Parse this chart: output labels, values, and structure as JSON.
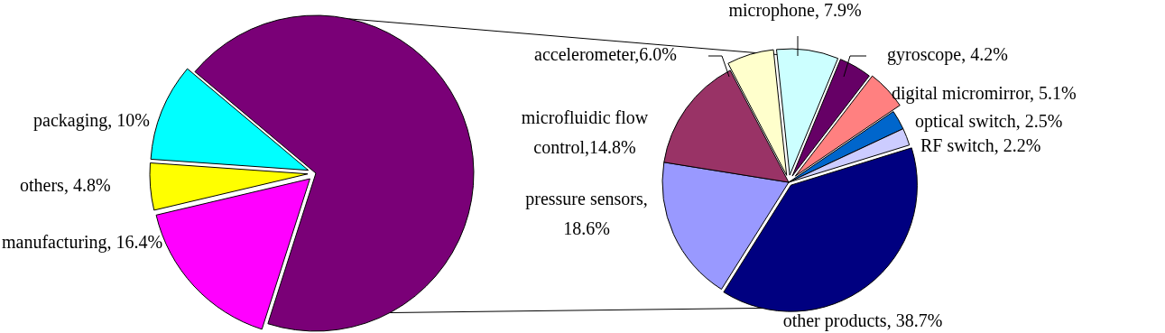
{
  "chart_data": [
    {
      "type": "pie",
      "categories": [
        null,
        "manufacturing",
        "others",
        "packaging"
      ],
      "values": [
        68.8,
        16.4,
        4.8,
        10
      ],
      "colors": [
        "#7a0077",
        "#ff00ff",
        "#ffff00",
        "#00ffff"
      ],
      "value_labels": [
        null,
        ", 16.4%",
        ", 4.8%",
        ", 10%"
      ]
    },
    {
      "type": "pie",
      "categories": [
        "microphone",
        "gyroscope",
        "digital micromirror",
        "optical switch",
        "RF switch",
        "other products",
        "pressure sensors",
        "microfluidic flow control",
        "accelerometer"
      ],
      "values": [
        7.9,
        4.2,
        5.1,
        2.5,
        2.2,
        38.7,
        18.6,
        14.8,
        6.0
      ],
      "colors": [
        "#ccffff",
        "#660066",
        "#ff8080",
        "#0066cc",
        "#ccccff",
        "#000080",
        "#9999ff",
        "#993366",
        "#ffffcc"
      ],
      "value_labels": [
        ", 7.9%",
        ", 4.2%",
        ", 5.1%",
        ", 2.5%",
        ", 2.2%",
        ", 38.7%",
        ",\n18.6%",
        ",14.8%",
        ",6.0%"
      ]
    }
  ]
}
